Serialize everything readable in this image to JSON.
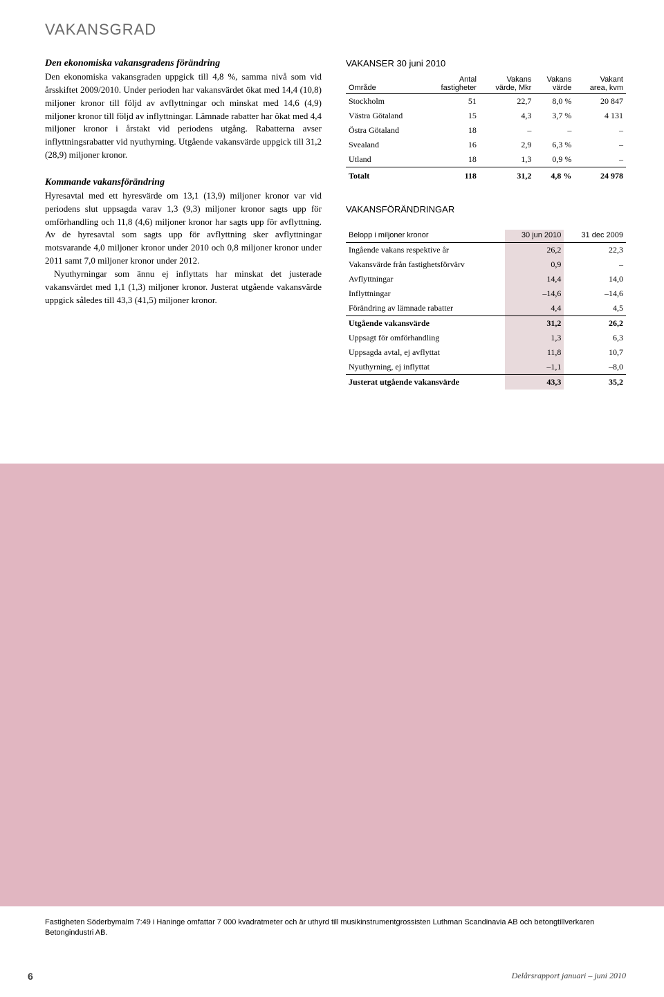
{
  "title": "VAKANSGRAD",
  "left": {
    "sec1_head": "Den ekonomiska vakansgradens förändring",
    "sec1_body": "Den ekonomiska vakansgraden uppgick till 4,8 %, samma nivå som vid årsskiftet 2009/2010. Under perioden har vakansvärdet ökat med 14,4 (10,8) miljoner kronor till följd av avflyttningar och minskat med 14,6 (4,9) miljoner kronor till följd av inflyttningar. Lämnade rabatter har ökat med 4,4 miljoner kronor i årstakt vid periodens utgång. Rabatterna avser inflyttningsrabatter vid nyut­hyrning. Utgående vakansvärde uppgick till 31,2 (28,9) miljoner kronor.",
    "sec2_head": "Kommande vakansförändring",
    "sec2_p1": "Hyresavtal med ett hyresvärde om 13,1 (13,9) miljoner kronor var vid periodens slut uppsagda varav 1,3 (9,3) miljoner kronor sagts upp för omförhandling och 11,8 (4,6) miljoner kronor har sagts upp för avflyttning. Av de hyresavtal som sagts upp för avflyttning sker avflyttningar motsvarande 4,0 miljoner kronor under 2010 och 0,8 miljoner kronor under 2011 samt 7,0 miljoner kronor under 2012.",
    "sec2_p2": "Nyuthyrningar som ännu ej inflyttats har minskat det justerade vakansvärdet med 1,1 (1,3) miljoner kronor. Justerat utgående vakansvärde uppgick således till 43,3 (41,5) miljoner kronor."
  },
  "table1": {
    "title": "VAKANSER 30 juni 2010",
    "headers": [
      "Område",
      "Antal fastigheter",
      "Vakans värde, Mkr",
      "Vakans värde",
      "Vakant area, kvm"
    ],
    "rows": [
      [
        "Stockholm",
        "51",
        "22,7",
        "8,0 %",
        "20 847"
      ],
      [
        "Västra Götaland",
        "15",
        "4,3",
        "3,7 %",
        "4 131"
      ],
      [
        "Östra Götaland",
        "18",
        "–",
        "–",
        "–"
      ],
      [
        "Svealand",
        "16",
        "2,9",
        "6,3 %",
        "–"
      ],
      [
        "Utland",
        "18",
        "1,3",
        "0,9 %",
        "–"
      ]
    ],
    "total": [
      "Totalt",
      "118",
      "31,2",
      "4,8 %",
      "24 978"
    ]
  },
  "table2": {
    "title": "VAKANSFÖRÄNDRINGAR",
    "headers": [
      "Belopp i miljoner kronor",
      "30 jun 2010",
      "31 dec 2009"
    ],
    "rows": [
      [
        "Ingående vakans respektive år",
        "26,2",
        "22,3"
      ],
      [
        "Vakansvärde från fastighetsförvärv",
        "0,9",
        "–"
      ],
      [
        "Avflyttningar",
        "14,4",
        "14,0"
      ],
      [
        "Inflyttningar",
        "–14,6",
        "–14,6"
      ],
      [
        "Förändring av lämnade rabatter",
        "4,4",
        "4,5"
      ]
    ],
    "mid": [
      "Utgående vakansvärde",
      "31,2",
      "26,2"
    ],
    "rows2": [
      [
        "Uppsagt för omförhandling",
        "1,3",
        "6,3"
      ],
      [
        "Uppsagda avtal, ej avflyttat",
        "11,8",
        "10,7"
      ],
      [
        "Nyuthyrning, ej inflyttat",
        "–1,1",
        "–8,0"
      ]
    ],
    "total": [
      "Justerat utgående vakansvärde",
      "43,3",
      "35,2"
    ]
  },
  "caption": "Fastigheten Söderbymalm 7:49 i Haninge omfattar 7 000 kvadratmeter och är uthyrd till musikinstrumentgrossisten Luthman Scandinavia AB och betongtillverkaren Betongindustri AB.",
  "footer": {
    "page": "6",
    "doc": "Delårsrapport januari – juni 2010"
  },
  "colors": {
    "title_gray": "#6b6b6b",
    "highlight_pink": "#e8dadc",
    "image_pink": "#e1b6c1"
  }
}
